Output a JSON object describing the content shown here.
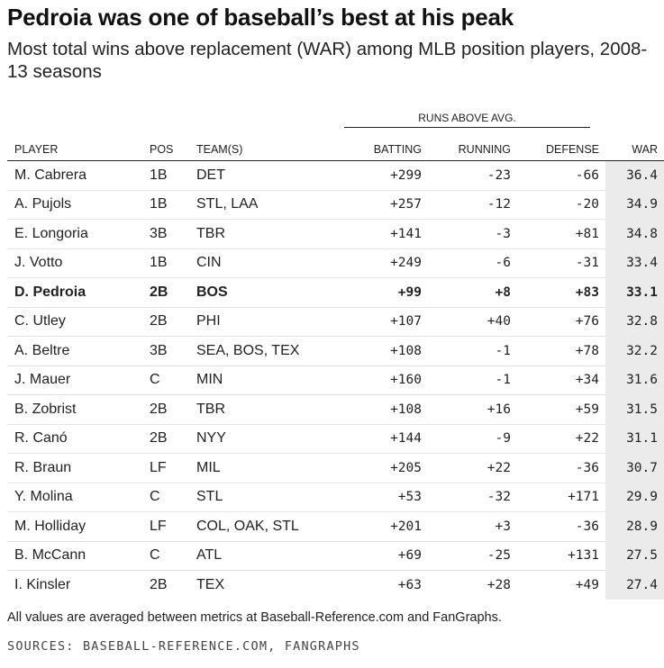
{
  "header": {
    "title": "Pedroia was one of baseball’s best at his peak",
    "subtitle": "Most total wins above replacement (WAR) among MLB position players, 2008-13 seasons"
  },
  "table": {
    "group_label": "RUNS ABOVE AVG.",
    "columns": {
      "player": "PLAYER",
      "pos": "POS",
      "team": "TEAM(S)",
      "batting": "BATTING",
      "running": "RUNNING",
      "defense": "DEFENSE",
      "war": "WAR"
    },
    "rows": [
      {
        "player": "M. Cabrera",
        "pos": "1B",
        "team": "DET",
        "batting": "+299",
        "running": "-23",
        "defense": "-66",
        "war": "36.4"
      },
      {
        "player": "A. Pujols",
        "pos": "1B",
        "team": "STL, LAA",
        "batting": "+257",
        "running": "-12",
        "defense": "-20",
        "war": "34.9"
      },
      {
        "player": "E. Longoria",
        "pos": "3B",
        "team": "TBR",
        "batting": "+141",
        "running": "-3",
        "defense": "+81",
        "war": "34.8"
      },
      {
        "player": "J. Votto",
        "pos": "1B",
        "team": "CIN",
        "batting": "+249",
        "running": "-6",
        "defense": "-31",
        "war": "33.4"
      },
      {
        "player": "D. Pedroia",
        "pos": "2B",
        "team": "BOS",
        "batting": "+99",
        "running": "+8",
        "defense": "+83",
        "war": "33.1"
      },
      {
        "player": "C. Utley",
        "pos": "2B",
        "team": "PHI",
        "batting": "+107",
        "running": "+40",
        "defense": "+76",
        "war": "32.8"
      },
      {
        "player": "A. Beltre",
        "pos": "3B",
        "team": "SEA, BOS, TEX",
        "batting": "+108",
        "running": "-1",
        "defense": "+78",
        "war": "32.2"
      },
      {
        "player": "J. Mauer",
        "pos": "C",
        "team": "MIN",
        "batting": "+160",
        "running": "-1",
        "defense": "+34",
        "war": "31.6"
      },
      {
        "player": "B. Zobrist",
        "pos": "2B",
        "team": "TBR",
        "batting": "+108",
        "running": "+16",
        "defense": "+59",
        "war": "31.5"
      },
      {
        "player": "R. Canó",
        "pos": "2B",
        "team": "NYY",
        "batting": "+144",
        "running": "-9",
        "defense": "+22",
        "war": "31.1"
      },
      {
        "player": "R. Braun",
        "pos": "LF",
        "team": "MIL",
        "batting": "+205",
        "running": "+22",
        "defense": "-36",
        "war": "30.7"
      },
      {
        "player": "Y. Molina",
        "pos": "C",
        "team": "STL",
        "batting": "+53",
        "running": "-32",
        "defense": "+171",
        "war": "29.9"
      },
      {
        "player": "M. Holliday",
        "pos": "LF",
        "team": "COL, OAK, STL",
        "batting": "+201",
        "running": "+3",
        "defense": "-36",
        "war": "28.9"
      },
      {
        "player": "B. McCann",
        "pos": "C",
        "team": "ATL",
        "batting": "+69",
        "running": "-25",
        "defense": "+131",
        "war": "27.5"
      },
      {
        "player": "I. Kinsler",
        "pos": "2B",
        "team": "TEX",
        "batting": "+63",
        "running": "+28",
        "defense": "+49",
        "war": "27.4"
      }
    ]
  },
  "footer": {
    "note": "All values are averaged between metrics at Baseball-Reference.com and FanGraphs.",
    "sources": "SOURCES: BASEBALL-REFERENCE.COM, FANGRAPHS"
  }
}
